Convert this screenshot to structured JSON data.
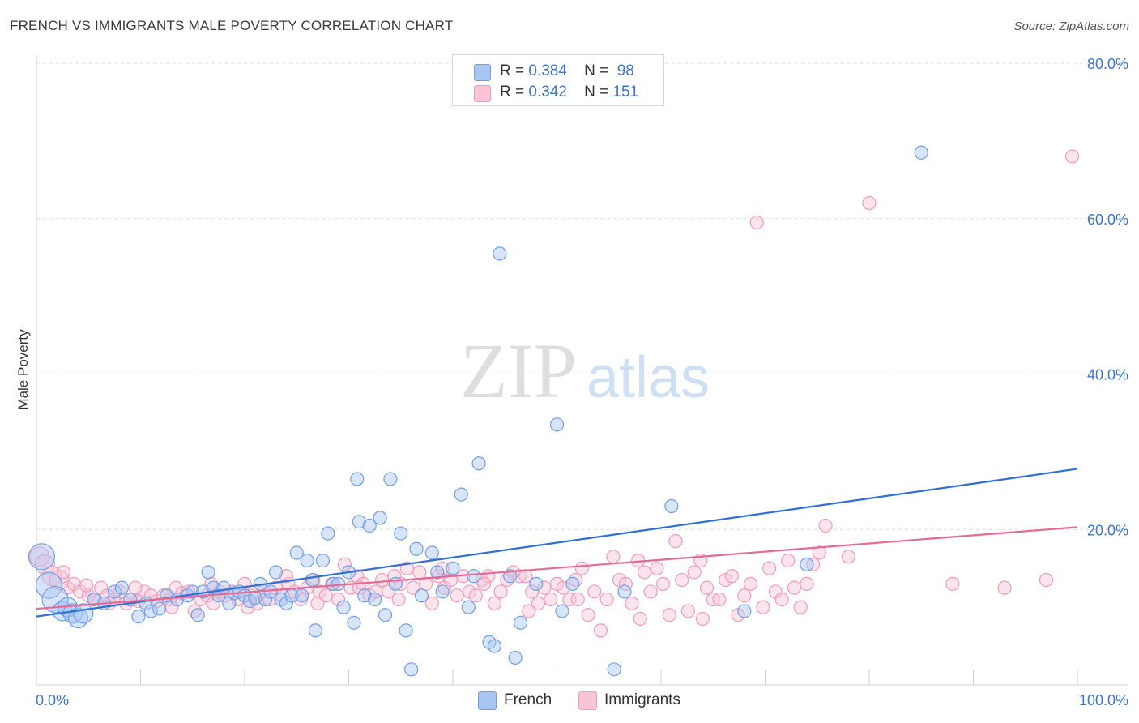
{
  "title": "FRENCH VS IMMIGRANTS MALE POVERTY CORRELATION CHART",
  "source": "Source: ZipAtlas.com",
  "watermark": {
    "zip": "ZIP",
    "atlas": "atlas"
  },
  "legend": {
    "rows": [
      {
        "r_label": "R =",
        "r_value": "0.384",
        "n_label": "N =",
        "n_value": "98"
      },
      {
        "r_label": "R =",
        "r_value": "0.342",
        "n_label": "N =",
        "n_value": "151"
      }
    ]
  },
  "chart_data": {
    "type": "scatter",
    "title": "FRENCH VS IMMIGRANTS MALE POVERTY CORRELATION CHART",
    "xlabel": "",
    "ylabel": "Male Poverty",
    "xlim": [
      0,
      100
    ],
    "ylim": [
      0,
      80
    ],
    "x_tick_labels": [
      "0.0%",
      "100.0%"
    ],
    "y_tick_values": [
      20,
      40,
      60,
      80
    ],
    "y_tick_labels": [
      "20.0%",
      "40.0%",
      "60.0%",
      "80.0%"
    ],
    "grid": "horizontal dashed",
    "legend_position": "top-center",
    "series": [
      {
        "name": "French",
        "color": "#6f9fe6",
        "fill": "#a9c6f2",
        "trend_color": "#2f6fd6",
        "r": 0.384,
        "n": 98,
        "trend": [
          [
            0,
            8.8
          ],
          [
            100,
            27.8
          ]
        ],
        "points": [
          [
            0.5,
            16.5,
            3
          ],
          [
            1.2,
            12.8,
            3
          ],
          [
            1.8,
            11.0,
            3
          ],
          [
            2.5,
            9.5,
            2
          ],
          [
            3.0,
            10.0,
            2
          ],
          [
            3.5,
            9.2,
            2
          ],
          [
            4.0,
            8.6,
            2
          ],
          [
            4.5,
            9.2,
            2
          ],
          [
            5.5,
            11.0,
            1
          ],
          [
            6.5,
            10.5,
            1
          ],
          [
            7.5,
            12.0,
            1
          ],
          [
            8.2,
            12.5,
            1
          ],
          [
            9.0,
            11.0,
            1
          ],
          [
            9.8,
            8.8,
            1
          ],
          [
            10.5,
            10.5,
            1
          ],
          [
            11.0,
            9.5,
            1
          ],
          [
            11.8,
            9.8,
            1
          ],
          [
            12.5,
            11.5,
            1
          ],
          [
            13.5,
            11.0,
            1
          ],
          [
            14.5,
            11.5,
            1
          ],
          [
            15.0,
            12.0,
            1
          ],
          [
            15.5,
            9.0,
            1
          ],
          [
            16.0,
            12.0,
            1
          ],
          [
            16.5,
            14.5,
            1
          ],
          [
            17.0,
            12.5,
            1
          ],
          [
            17.5,
            11.5,
            1
          ],
          [
            18.0,
            12.5,
            1
          ],
          [
            18.5,
            10.5,
            1
          ],
          [
            19.0,
            11.8,
            1
          ],
          [
            19.5,
            12.0,
            1
          ],
          [
            20.0,
            11.5,
            1
          ],
          [
            20.5,
            10.8,
            1
          ],
          [
            21.0,
            11.2,
            1
          ],
          [
            21.5,
            13.0,
            1
          ],
          [
            22.0,
            11.0,
            1
          ],
          [
            22.5,
            12.0,
            1
          ],
          [
            23.0,
            14.5,
            1
          ],
          [
            23.5,
            11.0,
            1
          ],
          [
            24.0,
            10.5,
            1
          ],
          [
            24.5,
            11.5,
            1
          ],
          [
            25.0,
            17.0,
            1
          ],
          [
            25.5,
            11.5,
            1
          ],
          [
            26.0,
            16.0,
            1
          ],
          [
            26.5,
            13.5,
            1
          ],
          [
            26.8,
            7.0,
            1
          ],
          [
            27.5,
            16.0,
            1
          ],
          [
            28.0,
            19.5,
            1
          ],
          [
            28.5,
            13.0,
            1
          ],
          [
            29.0,
            13.0,
            1
          ],
          [
            29.5,
            10.0,
            1
          ],
          [
            30.0,
            14.5,
            1
          ],
          [
            30.5,
            8.0,
            1
          ],
          [
            30.8,
            26.5,
            1
          ],
          [
            31.0,
            21.0,
            1
          ],
          [
            31.5,
            11.5,
            1
          ],
          [
            32.0,
            20.5,
            1
          ],
          [
            32.5,
            11.0,
            1
          ],
          [
            33.0,
            21.5,
            1
          ],
          [
            33.5,
            9.0,
            1
          ],
          [
            34.0,
            26.5,
            1
          ],
          [
            34.5,
            13.0,
            1
          ],
          [
            35.0,
            19.5,
            1
          ],
          [
            35.5,
            7.0,
            1
          ],
          [
            36.0,
            2.0,
            1
          ],
          [
            36.5,
            17.5,
            1
          ],
          [
            37.0,
            11.5,
            1
          ],
          [
            38.0,
            17.0,
            1
          ],
          [
            38.5,
            14.5,
            1
          ],
          [
            39.0,
            12.0,
            1
          ],
          [
            40.0,
            15.0,
            1
          ],
          [
            40.8,
            24.5,
            1
          ],
          [
            41.5,
            10.0,
            1
          ],
          [
            42.0,
            14.0,
            1
          ],
          [
            42.5,
            28.5,
            1
          ],
          [
            43.5,
            5.5,
            1
          ],
          [
            44.0,
            5.0,
            1
          ],
          [
            44.5,
            55.5,
            1
          ],
          [
            45.5,
            14.0,
            1
          ],
          [
            46.0,
            3.5,
            1
          ],
          [
            46.5,
            8.0,
            1
          ],
          [
            48.0,
            13.0,
            1
          ],
          [
            50.0,
            33.5,
            1
          ],
          [
            50.5,
            9.5,
            1
          ],
          [
            51.5,
            13.0,
            1
          ],
          [
            55.5,
            2.0,
            1
          ],
          [
            56.5,
            12.0,
            1
          ],
          [
            61.0,
            23.0,
            1
          ],
          [
            68.0,
            9.5,
            1
          ],
          [
            74.0,
            15.5,
            1
          ],
          [
            85.0,
            68.5,
            1
          ]
        ]
      },
      {
        "name": "Immigrants",
        "color": "#f09bb7",
        "fill": "#f8c4d6",
        "trend_color": "#e66a96",
        "r": 0.342,
        "n": 151,
        "trend": [
          [
            0,
            9.8
          ],
          [
            100,
            20.3
          ]
        ],
        "points": [
          [
            0.3,
            16.5,
            2
          ],
          [
            0.8,
            15.5,
            2
          ],
          [
            1.5,
            14.0,
            2
          ],
          [
            2.2,
            13.5,
            2
          ],
          [
            3.0,
            12.5,
            1
          ],
          [
            3.6,
            13.0,
            1
          ],
          [
            4.2,
            12.0,
            1
          ],
          [
            5.0,
            11.5,
            1
          ],
          [
            5.6,
            11.0,
            1
          ],
          [
            6.2,
            12.5,
            1
          ],
          [
            6.8,
            11.5,
            1
          ],
          [
            7.4,
            11.0,
            1
          ],
          [
            8.0,
            12.0,
            1
          ],
          [
            8.6,
            10.5,
            1
          ],
          [
            9.2,
            11.0,
            1
          ],
          [
            9.8,
            10.8,
            1
          ],
          [
            10.4,
            12.0,
            1
          ],
          [
            11.0,
            11.5,
            1
          ],
          [
            11.6,
            10.8,
            1
          ],
          [
            12.2,
            11.5,
            1
          ],
          [
            12.8,
            11.0,
            1
          ],
          [
            13.4,
            12.5,
            1
          ],
          [
            14.0,
            11.8,
            1
          ],
          [
            14.6,
            12.0,
            1
          ],
          [
            15.2,
            9.5,
            1
          ],
          [
            15.8,
            11.0,
            1
          ],
          [
            16.4,
            11.5,
            1
          ],
          [
            17.0,
            10.5,
            1
          ],
          [
            17.6,
            12.0,
            1
          ],
          [
            18.2,
            11.5,
            1
          ],
          [
            18.8,
            12.0,
            1
          ],
          [
            19.4,
            11.0,
            1
          ],
          [
            20.0,
            13.0,
            1
          ],
          [
            20.6,
            11.5,
            1
          ],
          [
            21.2,
            10.5,
            1
          ],
          [
            21.8,
            12.0,
            1
          ],
          [
            22.4,
            11.0,
            1
          ],
          [
            23.0,
            12.5,
            1
          ],
          [
            23.6,
            11.5,
            1
          ],
          [
            24.2,
            13.0,
            1
          ],
          [
            24.8,
            12.0,
            1
          ],
          [
            25.4,
            11.0,
            1
          ],
          [
            26.0,
            12.5,
            1
          ],
          [
            26.6,
            13.5,
            1
          ],
          [
            27.2,
            12.0,
            1
          ],
          [
            27.8,
            11.5,
            1
          ],
          [
            28.4,
            13.0,
            1
          ],
          [
            29.0,
            11.0,
            1
          ],
          [
            29.6,
            15.5,
            1
          ],
          [
            30.2,
            12.5,
            1
          ],
          [
            30.8,
            14.0,
            1
          ],
          [
            31.4,
            13.0,
            1
          ],
          [
            32.0,
            11.5,
            1
          ],
          [
            32.6,
            12.0,
            1
          ],
          [
            33.2,
            13.5,
            1
          ],
          [
            33.8,
            12.0,
            1
          ],
          [
            34.4,
            14.0,
            1
          ],
          [
            35.0,
            13.0,
            1
          ],
          [
            35.6,
            15.0,
            1
          ],
          [
            36.2,
            12.5,
            1
          ],
          [
            36.8,
            14.5,
            1
          ],
          [
            37.4,
            13.0,
            1
          ],
          [
            38.0,
            10.5,
            1
          ],
          [
            38.6,
            14.0,
            1
          ],
          [
            39.2,
            12.5,
            1
          ],
          [
            39.8,
            13.5,
            1
          ],
          [
            40.4,
            11.5,
            1
          ],
          [
            41.0,
            14.0,
            1
          ],
          [
            41.6,
            12.0,
            1
          ],
          [
            42.2,
            11.5,
            1
          ],
          [
            42.8,
            13.5,
            1
          ],
          [
            43.4,
            14.0,
            1
          ],
          [
            44.0,
            10.5,
            1
          ],
          [
            44.6,
            12.0,
            1
          ],
          [
            45.2,
            13.5,
            1
          ],
          [
            45.8,
            14.5,
            1
          ],
          [
            46.4,
            14.0,
            1
          ],
          [
            47.0,
            14.0,
            1
          ],
          [
            47.6,
            12.0,
            1
          ],
          [
            48.2,
            10.5,
            1
          ],
          [
            48.8,
            12.5,
            1
          ],
          [
            49.4,
            11.0,
            1
          ],
          [
            50.0,
            13.0,
            1
          ],
          [
            50.6,
            12.5,
            1
          ],
          [
            51.2,
            11.0,
            1
          ],
          [
            51.8,
            13.5,
            1
          ],
          [
            52.4,
            15.0,
            1
          ],
          [
            53.0,
            9.0,
            1
          ],
          [
            53.6,
            12.0,
            1
          ],
          [
            54.2,
            7.0,
            1
          ],
          [
            54.8,
            11.0,
            1
          ],
          [
            55.4,
            16.5,
            1
          ],
          [
            56.0,
            13.5,
            1
          ],
          [
            56.6,
            13.0,
            1
          ],
          [
            57.2,
            10.5,
            1
          ],
          [
            57.8,
            16.0,
            1
          ],
          [
            58.4,
            14.5,
            1
          ],
          [
            59.0,
            12.0,
            1
          ],
          [
            59.6,
            15.0,
            1
          ],
          [
            60.2,
            13.0,
            1
          ],
          [
            60.8,
            9.0,
            1
          ],
          [
            61.4,
            18.5,
            1
          ],
          [
            62.0,
            13.5,
            1
          ],
          [
            62.6,
            9.5,
            1
          ],
          [
            63.2,
            14.5,
            1
          ],
          [
            63.8,
            16.0,
            1
          ],
          [
            64.4,
            12.5,
            1
          ],
          [
            65.0,
            11.0,
            1
          ],
          [
            65.6,
            11.0,
            1
          ],
          [
            66.2,
            13.5,
            1
          ],
          [
            66.8,
            14.0,
            1
          ],
          [
            67.4,
            9.0,
            1
          ],
          [
            68.0,
            11.5,
            1
          ],
          [
            68.6,
            13.0,
            1
          ],
          [
            69.2,
            59.5,
            1
          ],
          [
            69.8,
            10.0,
            1
          ],
          [
            70.4,
            15.0,
            1
          ],
          [
            71.0,
            12.0,
            1
          ],
          [
            71.6,
            11.0,
            1
          ],
          [
            72.2,
            16.0,
            1
          ],
          [
            72.8,
            12.5,
            1
          ],
          [
            73.4,
            10.0,
            1
          ],
          [
            74.0,
            13.0,
            1
          ],
          [
            74.6,
            15.5,
            1
          ],
          [
            75.2,
            17.0,
            1
          ],
          [
            75.8,
            20.5,
            1
          ],
          [
            78.0,
            16.5,
            1
          ],
          [
            80.0,
            62.0,
            1
          ],
          [
            88.0,
            13.0,
            1
          ],
          [
            93.0,
            12.5,
            1
          ],
          [
            97.0,
            13.5,
            1
          ],
          [
            99.5,
            68.0,
            1
          ],
          [
            2.6,
            14.5,
            1
          ],
          [
            4.8,
            12.8,
            1
          ],
          [
            7.0,
            10.5,
            1
          ],
          [
            9.5,
            12.5,
            1
          ],
          [
            13.0,
            10.0,
            1
          ],
          [
            16.8,
            13.0,
            1
          ],
          [
            20.3,
            10.0,
            1
          ],
          [
            24.0,
            14.0,
            1
          ],
          [
            27.0,
            10.5,
            1
          ],
          [
            31.0,
            12.5,
            1
          ],
          [
            34.8,
            11.0,
            1
          ],
          [
            39.0,
            15.0,
            1
          ],
          [
            43.0,
            13.0,
            1
          ],
          [
            47.3,
            9.5,
            1
          ],
          [
            52.0,
            11.0,
            1
          ],
          [
            58.0,
            8.5,
            1
          ],
          [
            64.0,
            8.5,
            1
          ]
        ]
      }
    ]
  }
}
